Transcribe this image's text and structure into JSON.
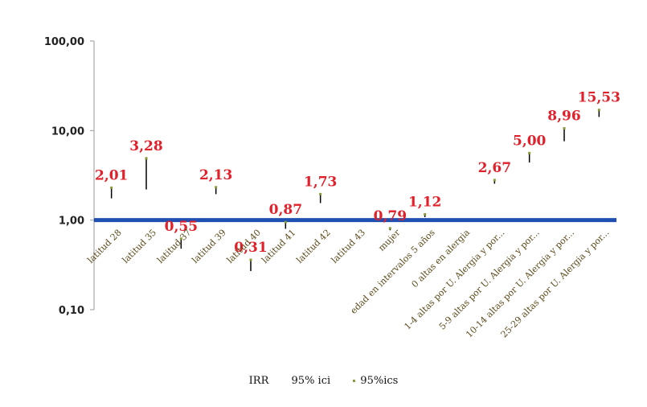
{
  "chart_data": {
    "type": "scatter",
    "title": "",
    "xlabel": "",
    "ylabel": "",
    "y_scale": "log",
    "ylim": [
      0.1,
      100
    ],
    "y_ticks": [
      "0,10",
      "1,00",
      "10,00",
      "100,00"
    ],
    "y_tick_values": [
      0.1,
      1,
      10,
      100
    ],
    "grid": false,
    "reference_line": 1,
    "legend_position": "bottom",
    "legend": [
      "IRR",
      "95% ici",
      "95%ics"
    ],
    "categories": [
      "latitud 28",
      "latitud 35",
      "latitud 37",
      "latitud 39",
      "latitud 40",
      "latitud 41",
      "latitud 42",
      "latitud 43",
      "mujer",
      "edad en intervalos 5 años",
      "0 altas en alergia",
      "1-4 altas por U. Alergia y por...",
      "5-9 altas por U. Alergia y por...",
      "10-14 altas por U. Alergia y por...",
      "25-29 altas por U. Alergia y por..."
    ],
    "labels": [
      "2,01",
      "3,28",
      "0,55",
      "2,13",
      "0,31",
      "0,87",
      "1,73",
      "",
      "0,79",
      "1,12",
      "",
      "2,67",
      "5,00",
      "8,96",
      "15,53"
    ],
    "series": [
      {
        "name": "IRR",
        "values": [
          2.01,
          3.28,
          0.55,
          2.13,
          0.31,
          0.87,
          1.73,
          null,
          0.79,
          1.12,
          null,
          2.67,
          5.0,
          8.96,
          15.53
        ]
      },
      {
        "name": "95% ici",
        "values": [
          1.75,
          2.2,
          0.48,
          1.95,
          0.27,
          0.8,
          1.55,
          null,
          0.77,
          1.08,
          null,
          2.55,
          4.4,
          7.6,
          14.2
        ]
      },
      {
        "name": "95%ics",
        "values": [
          2.3,
          4.9,
          0.62,
          2.33,
          0.36,
          0.95,
          1.95,
          null,
          0.81,
          1.16,
          null,
          2.8,
          5.6,
          10.6,
          17.0
        ]
      }
    ],
    "colors": {
      "reference_line": "#1f4fb0",
      "error_bar": "#000000",
      "marker": "#8a9a3a",
      "data_label": "#e0202a",
      "category_label": "#5a4a1a"
    }
  }
}
